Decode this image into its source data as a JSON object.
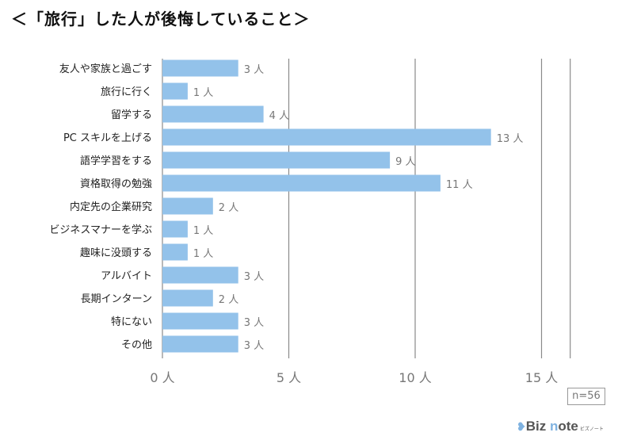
{
  "title": "＜「旅行」した人が後悔していること＞",
  "chart_data": {
    "type": "bar",
    "orientation": "horizontal",
    "title": "＜「旅行」した人が後悔していること＞",
    "categories": [
      "友人や家族と過ごす",
      "旅行に行く",
      "留学する",
      "PC スキルを上げる",
      "語学学習をする",
      "資格取得の勉強",
      "内定先の企業研究",
      "ビジネスマナーを学ぶ",
      "趣味に没頭する",
      "アルバイト",
      "長期インターン",
      "特にない",
      "その他"
    ],
    "values": [
      3,
      1,
      4,
      13,
      9,
      11,
      2,
      1,
      1,
      3,
      2,
      3,
      3
    ],
    "unit": "人",
    "xlim": [
      0,
      15
    ],
    "xticks": [
      0,
      5,
      10,
      15
    ],
    "tick_labels": [
      "0 人",
      "5 人",
      "10 人",
      "15 人"
    ],
    "grid": true,
    "bar_color": "#93c2ea",
    "annotation": "n=56"
  },
  "logo": {
    "text_a": "Biz ",
    "text_n": "n",
    "text_b": "ote",
    "sub": "ビズノート"
  }
}
